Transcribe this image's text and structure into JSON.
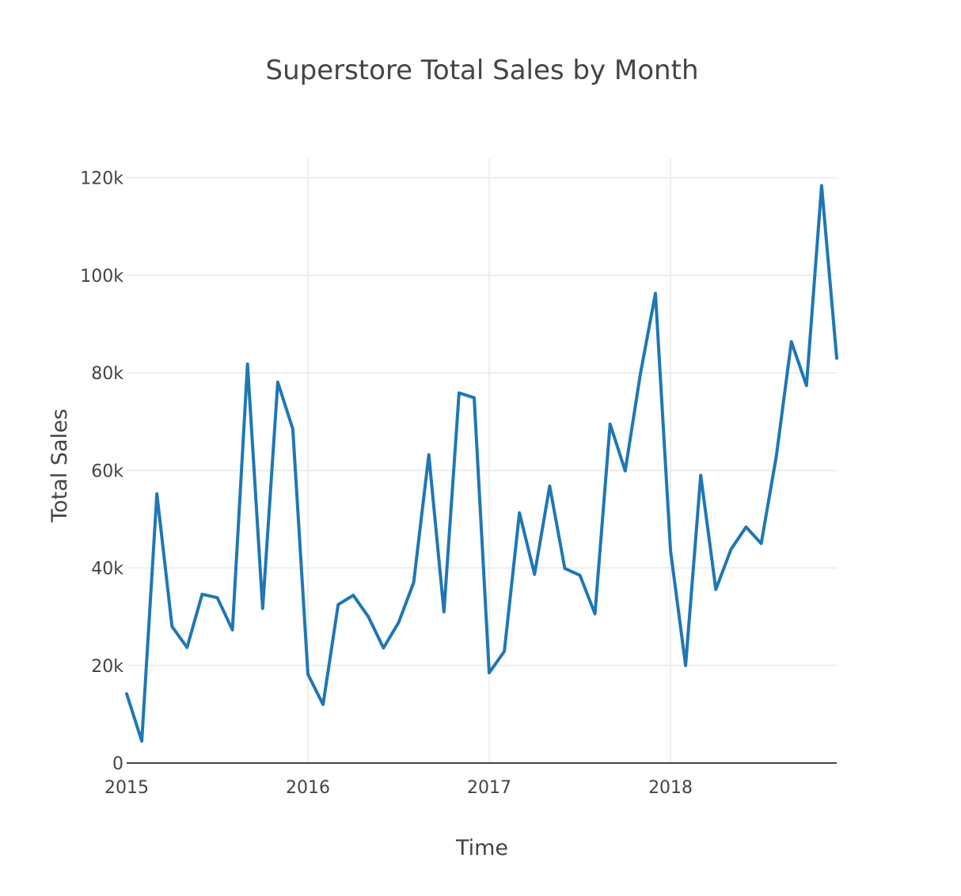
{
  "chart_data": {
    "type": "line",
    "title": "Superstore Total Sales by Month",
    "xlabel": "Time",
    "ylabel": "Total Sales",
    "x_start": "2015-01",
    "x_range": [
      "2015-01",
      "2018-12"
    ],
    "ylim": [
      0,
      124000
    ],
    "x_ticks": [
      {
        "value": "2015-01",
        "label": "2015"
      },
      {
        "value": "2016-01",
        "label": "2016"
      },
      {
        "value": "2017-01",
        "label": "2017"
      },
      {
        "value": "2018-01",
        "label": "2018"
      }
    ],
    "y_ticks": [
      {
        "value": 0,
        "label": "0"
      },
      {
        "value": 20000,
        "label": "20k"
      },
      {
        "value": 40000,
        "label": "40k"
      },
      {
        "value": 60000,
        "label": "60k"
      },
      {
        "value": 80000,
        "label": "80k"
      },
      {
        "value": 100000,
        "label": "100k"
      },
      {
        "value": 120000,
        "label": "120k"
      }
    ],
    "grid": true,
    "color": "#1f77b4",
    "series": [
      {
        "name": "",
        "x": [
          "2015-01",
          "2015-02",
          "2015-03",
          "2015-04",
          "2015-05",
          "2015-06",
          "2015-07",
          "2015-08",
          "2015-09",
          "2015-10",
          "2015-11",
          "2015-12",
          "2016-01",
          "2016-02",
          "2016-03",
          "2016-04",
          "2016-05",
          "2016-06",
          "2016-07",
          "2016-08",
          "2016-09",
          "2016-10",
          "2016-11",
          "2016-12",
          "2017-01",
          "2017-02",
          "2017-03",
          "2017-04",
          "2017-05",
          "2017-06",
          "2017-07",
          "2017-08",
          "2017-09",
          "2017-10",
          "2017-11",
          "2017-12",
          "2018-01",
          "2018-02",
          "2018-03",
          "2018-04",
          "2018-05",
          "2018-06",
          "2018-07",
          "2018-08",
          "2018-09",
          "2018-10",
          "2018-11",
          "2018-12"
        ],
        "values": [
          14200,
          4500,
          55200,
          28000,
          23700,
          34600,
          33900,
          27300,
          81800,
          31700,
          78100,
          68500,
          18200,
          12000,
          32500,
          34400,
          30000,
          23600,
          28800,
          37000,
          63200,
          31000,
          75900,
          74900,
          18500,
          22900,
          51300,
          38700,
          56800,
          39900,
          38500,
          30600,
          69500,
          59900,
          79700,
          96300,
          43500,
          20000,
          59000,
          35600,
          43800,
          48400,
          45000,
          62900,
          86400,
          77400,
          118400,
          83000
        ]
      }
    ]
  }
}
